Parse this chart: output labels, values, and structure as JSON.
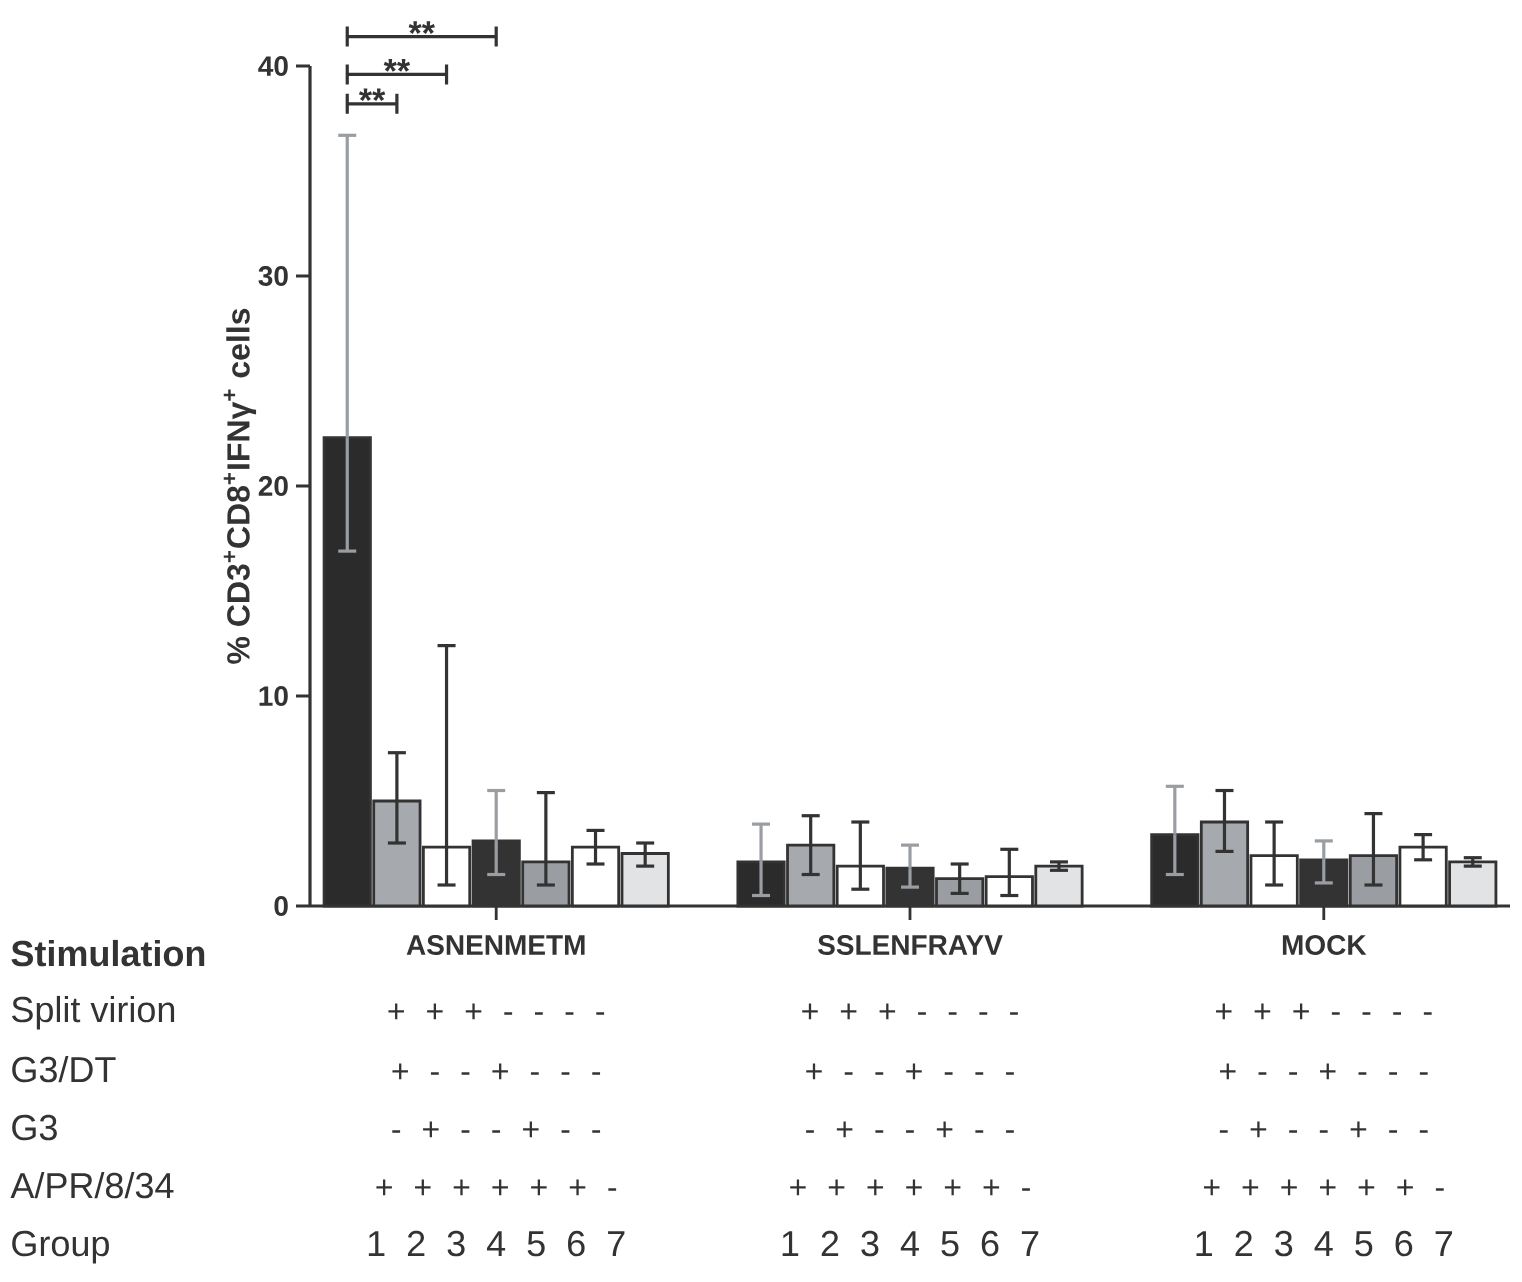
{
  "chart_data": {
    "type": "bar",
    "ylabel": "% CD3$^{+}$CD8$^{+}$IFNγ$^{+}$ cells",
    "categories": [
      "ASNENMETM",
      "SSLENFRAYV",
      "MOCK"
    ],
    "ylim": [
      0,
      40
    ],
    "yticks": [
      0,
      10,
      20,
      30,
      40
    ],
    "series": [
      {
        "color": "#2b2b2b",
        "values": [
          22.3,
          2.1,
          3.4
        ],
        "errors": [
          [
            16.9,
            36.7
          ],
          [
            0.5,
            3.9
          ],
          [
            1.5,
            5.7
          ]
        ]
      },
      {
        "color": "#a6a9ad",
        "values": [
          5.0,
          2.9,
          4.0
        ],
        "errors": [
          [
            3.0,
            7.3
          ],
          [
            1.5,
            4.3
          ],
          [
            2.6,
            5.5
          ]
        ]
      },
      {
        "color": "#ffffff",
        "values": [
          2.8,
          1.9,
          2.4
        ],
        "errors": [
          [
            1.0,
            12.4
          ],
          [
            0.8,
            4.0
          ],
          [
            1.0,
            4.0
          ]
        ]
      },
      {
        "color": "#333333",
        "values": [
          3.1,
          1.8,
          2.2
        ],
        "errors": [
          [
            1.5,
            5.5
          ],
          [
            0.9,
            2.9
          ],
          [
            1.1,
            3.1
          ]
        ]
      },
      {
        "color": "#9a9ea2",
        "values": [
          2.1,
          1.3,
          2.4
        ],
        "errors": [
          [
            1.0,
            5.4
          ],
          [
            0.6,
            2.0
          ],
          [
            1.0,
            4.4
          ]
        ]
      },
      {
        "color": "#ffffff",
        "values": [
          2.8,
          1.4,
          2.8
        ],
        "errors": [
          [
            2.0,
            3.6
          ],
          [
            0.5,
            2.7
          ],
          [
            2.2,
            3.4
          ]
        ]
      },
      {
        "color": "#e2e3e5",
        "values": [
          2.5,
          1.9,
          2.1
        ],
        "errors": [
          [
            1.9,
            3.0
          ],
          [
            1.7,
            2.1
          ],
          [
            1.9,
            2.3
          ]
        ]
      }
    ],
    "annotations": [
      "**",
      "**",
      "**",
      "Stimulation",
      "Split virion",
      "G3/DT",
      "G3",
      "A/PR/8/34",
      "Group",
      "+ + + - - - -",
      "+ - - + - - -",
      "- + - - + - -",
      "+ + + + + + -",
      "1 2 3 4 5 6 7"
    ]
  }
}
